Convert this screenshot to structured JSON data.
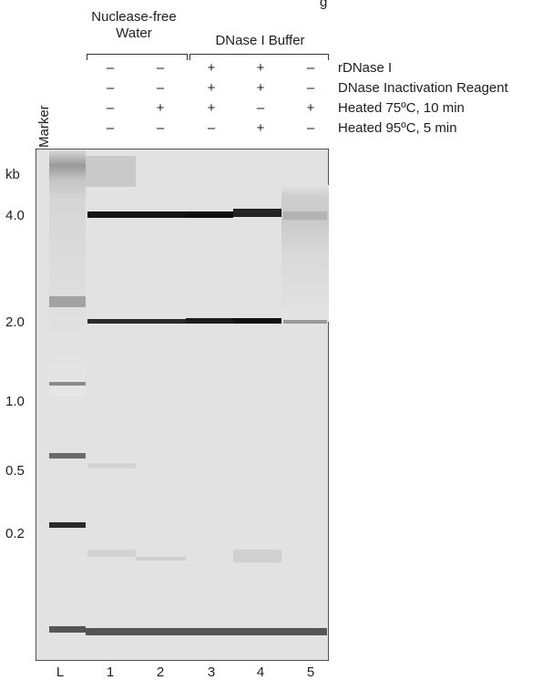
{
  "header": {
    "group_water": "Nuclease-free\nWater",
    "group_water_line1": "Nuclease-free",
    "group_water_line2": "Water",
    "group_buffer": "DNase I Buffer",
    "title_fragment": "g"
  },
  "conditions": [
    {
      "label": "rDNase I",
      "signs": [
        "–",
        "–",
        "+",
        "+",
        "–"
      ]
    },
    {
      "label": "DNase Inactivation Reagent",
      "signs": [
        "–",
        "–",
        "+",
        "+",
        "–"
      ]
    },
    {
      "label": "Heated 75ºC, 10 min",
      "signs": [
        "–",
        "+",
        "+",
        "–",
        "+"
      ]
    },
    {
      "label": "Heated 95ºC, 5 min",
      "signs": [
        "–",
        "–",
        "–",
        "+",
        "–"
      ]
    }
  ],
  "marker_label": "Marker",
  "size_axis": {
    "unit": "kb",
    "ticks": [
      "4.0",
      "2.0",
      "1.0",
      "0.5",
      "0.2"
    ]
  },
  "lanes": [
    "L",
    "1",
    "2",
    "3",
    "4",
    "5"
  ],
  "colors": {
    "gel_background": "#e4e4e4",
    "band_dark": "#111111",
    "text": "#1e1e1e"
  }
}
